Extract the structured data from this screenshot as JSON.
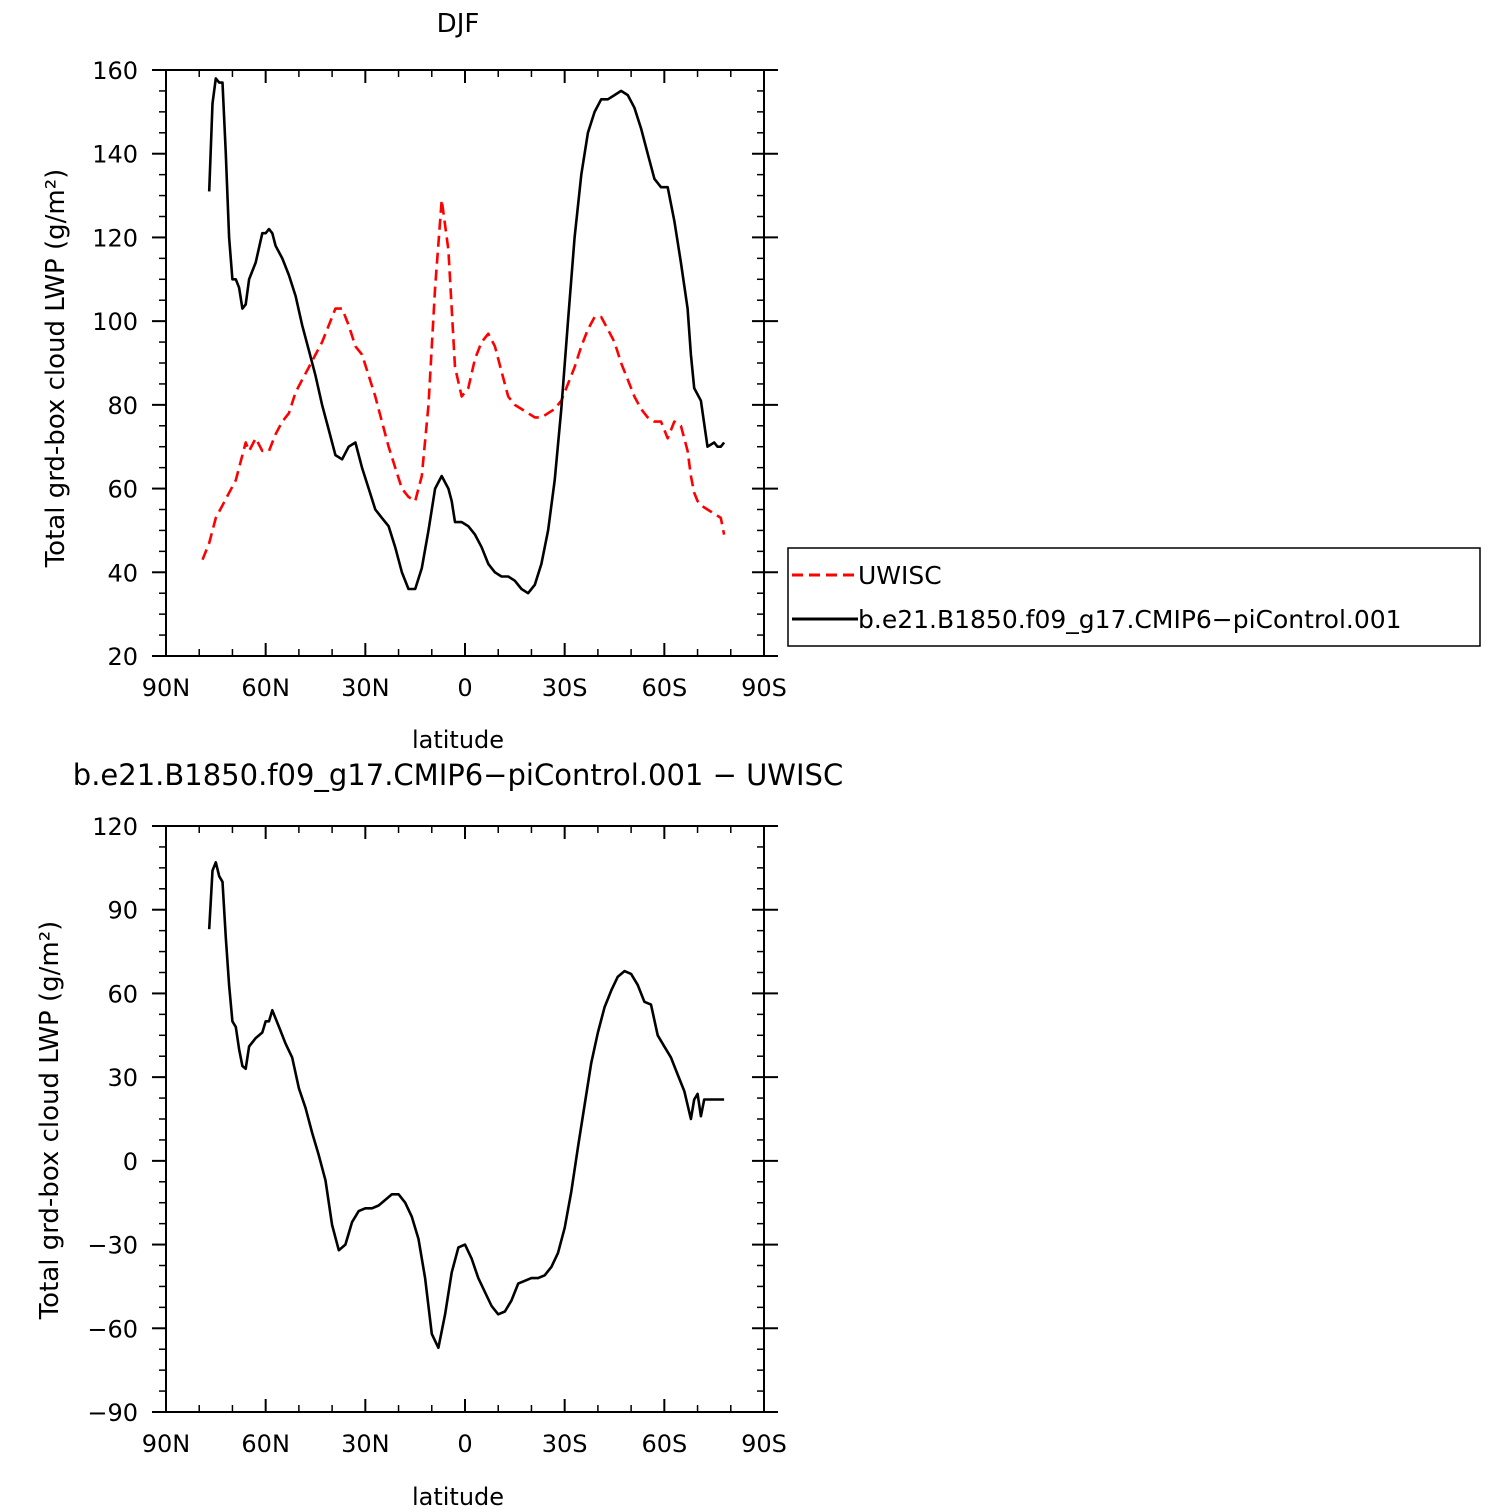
{
  "chart_data": [
    {
      "type": "line",
      "title": "DJF",
      "xlabel": "latitude",
      "ylabel": "Total grd-box cloud LWP (g/m²)",
      "xlim": [
        90,
        -90
      ],
      "ylim": [
        20,
        160
      ],
      "x_ticks": [
        90,
        60,
        30,
        0,
        -30,
        -60,
        -90
      ],
      "x_tick_labels": [
        "90N",
        "60N",
        "30N",
        "0",
        "30S",
        "60S",
        "90S"
      ],
      "y_ticks": [
        20,
        40,
        60,
        80,
        100,
        120,
        140,
        160
      ],
      "y_tick_labels": [
        "20",
        "40",
        "60",
        "80",
        "100",
        "120",
        "140",
        "160"
      ],
      "legend": {
        "placement": "right",
        "entries": [
          {
            "label": "UWISC",
            "color": "#ff0000",
            "dash": "dashed"
          },
          {
            "label": "b.e21.B1850.f09_g17.CMIP6−piControl.001",
            "color": "#000000",
            "dash": "solid"
          }
        ]
      },
      "series": [
        {
          "name": "UWISC",
          "color": "#ff0000",
          "style": "dashed",
          "x": [
            79,
            77,
            75,
            73,
            71,
            69,
            67,
            66,
            65,
            63,
            61,
            59,
            57,
            55,
            53,
            51,
            49,
            47,
            45,
            43,
            41,
            39,
            37,
            35,
            33,
            31,
            29,
            27,
            25,
            23,
            21,
            19,
            17,
            15,
            13,
            11,
            9,
            7,
            5,
            3,
            1,
            -1,
            -3,
            -5,
            -7,
            -9,
            -11,
            -13,
            -15,
            -17,
            -19,
            -21,
            -23,
            -25,
            -27,
            -29,
            -31,
            -33,
            -35,
            -37,
            -39,
            -41,
            -43,
            -45,
            -47,
            -49,
            -51,
            -53,
            -55,
            -57,
            -59,
            -61,
            -63,
            -65,
            -67,
            -68,
            -69,
            -70,
            -71,
            -73,
            -75,
            -77,
            -78
          ],
          "y": [
            43,
            47,
            53,
            56,
            59,
            62,
            68,
            71,
            69,
            72,
            69,
            69,
            73,
            76,
            78,
            83,
            86,
            89,
            92,
            95,
            99,
            103,
            103,
            99,
            94,
            92,
            87,
            82,
            76,
            70,
            65,
            60,
            58,
            57,
            63,
            80,
            108,
            129,
            117,
            89,
            82,
            84,
            91,
            95,
            97,
            94,
            88,
            82,
            80,
            79,
            78,
            77,
            77,
            78,
            79,
            81,
            85,
            89,
            94,
            98,
            101,
            101,
            98,
            95,
            90,
            86,
            82,
            79,
            77,
            76,
            76,
            72,
            76,
            75,
            69,
            63,
            59,
            57,
            56,
            55,
            54,
            53,
            49
          ]
        },
        {
          "name": "b.e21.B1850.f09_g17.CMIP6−piControl.001",
          "color": "#000000",
          "style": "solid",
          "x": [
            77,
            76,
            75,
            74,
            73,
            72,
            71,
            70,
            69,
            68,
            67,
            66,
            65,
            64,
            63,
            61,
            60,
            59,
            58,
            57,
            55,
            53,
            51,
            49,
            47,
            45,
            43,
            41,
            39,
            37,
            35,
            33,
            31,
            29,
            27,
            25,
            23,
            21,
            19,
            17,
            15,
            13,
            11,
            9,
            7,
            5,
            4,
            3,
            1,
            -1,
            -3,
            -5,
            -7,
            -9,
            -11,
            -13,
            -15,
            -17,
            -19,
            -21,
            -23,
            -25,
            -27,
            -29,
            -31,
            -33,
            -35,
            -37,
            -39,
            -41,
            -43,
            -45,
            -47,
            -49,
            -51,
            -53,
            -55,
            -57,
            -59,
            -61,
            -63,
            -65,
            -67,
            -68,
            -69,
            -71,
            -73,
            -75,
            -76,
            -77,
            -78
          ],
          "y": [
            131,
            152,
            158,
            157,
            157,
            140,
            120,
            110,
            110,
            108,
            103,
            104,
            110,
            112,
            114,
            121,
            121,
            122,
            121,
            118,
            115,
            111,
            106,
            99,
            93,
            87,
            80,
            74,
            68,
            67,
            70,
            71,
            65,
            60,
            55,
            53,
            51,
            46,
            40,
            36,
            36,
            41,
            50,
            60,
            63,
            60,
            57,
            52,
            52,
            51,
            49,
            46,
            42,
            40,
            39,
            39,
            38,
            36,
            35,
            37,
            42,
            50,
            62,
            79,
            100,
            120,
            135,
            145,
            150,
            153,
            153,
            154,
            155,
            154,
            151,
            146,
            140,
            134,
            132,
            132,
            124,
            114,
            103,
            92,
            84,
            81,
            70,
            71,
            70,
            70,
            71
          ]
        }
      ]
    },
    {
      "type": "line",
      "title": "b.e21.B1850.f09_g17.CMIP6−piControl.001  −  UWISC",
      "xlabel": "latitude",
      "ylabel": "Total grd-box cloud LWP (g/m²)",
      "xlim": [
        90,
        -90
      ],
      "ylim": [
        -90,
        120
      ],
      "x_ticks": [
        90,
        60,
        30,
        0,
        -30,
        -60,
        -90
      ],
      "x_tick_labels": [
        "90N",
        "60N",
        "30N",
        "0",
        "30S",
        "60S",
        "90S"
      ],
      "y_ticks": [
        -90,
        -60,
        -30,
        0,
        30,
        60,
        90,
        120
      ],
      "y_tick_labels": [
        "−90",
        "−60",
        "−30",
        "0",
        "30",
        "60",
        "90",
        "120"
      ],
      "series": [
        {
          "color": "#000000",
          "style": "solid",
          "x": [
            77,
            76,
            75,
            74,
            73,
            72,
            71,
            70,
            69,
            68,
            67,
            66,
            65,
            63,
            61,
            60,
            59,
            58,
            56,
            54,
            52,
            50,
            48,
            46,
            44,
            42,
            40,
            38,
            36,
            34,
            32,
            30,
            28,
            26,
            24,
            22,
            20,
            18,
            16,
            14,
            12,
            10,
            8,
            6,
            4,
            2,
            0,
            -2,
            -4,
            -6,
            -8,
            -10,
            -12,
            -14,
            -16,
            -18,
            -20,
            -22,
            -24,
            -26,
            -28,
            -30,
            -32,
            -34,
            -36,
            -38,
            -40,
            -42,
            -44,
            -46,
            -48,
            -50,
            -52,
            -54,
            -56,
            -58,
            -60,
            -62,
            -64,
            -66,
            -67,
            -68,
            -69,
            -70,
            -71,
            -72,
            -73,
            -74,
            -75,
            -76,
            -77,
            -78
          ],
          "y": [
            83,
            104,
            107,
            102,
            100,
            80,
            63,
            50,
            48,
            40,
            34,
            33,
            41,
            44,
            46,
            50,
            50,
            54,
            48,
            42,
            37,
            26,
            19,
            10,
            2,
            -7,
            -23,
            -32,
            -30,
            -22,
            -18,
            -17,
            -17,
            -16,
            -14,
            -12,
            -12,
            -15,
            -20,
            -28,
            -42,
            -62,
            -67,
            -55,
            -40,
            -31,
            -30,
            -35,
            -42,
            -47,
            -52,
            -55,
            -54,
            -50,
            -44,
            -43,
            -42,
            -42,
            -41,
            -38,
            -33,
            -24,
            -11,
            5,
            20,
            35,
            46,
            55,
            61,
            66,
            68,
            67,
            63,
            57,
            56,
            45,
            41,
            37,
            31,
            25,
            20,
            15,
            22,
            24,
            16,
            22,
            22,
            22,
            22,
            22,
            22,
            22
          ]
        }
      ]
    }
  ]
}
